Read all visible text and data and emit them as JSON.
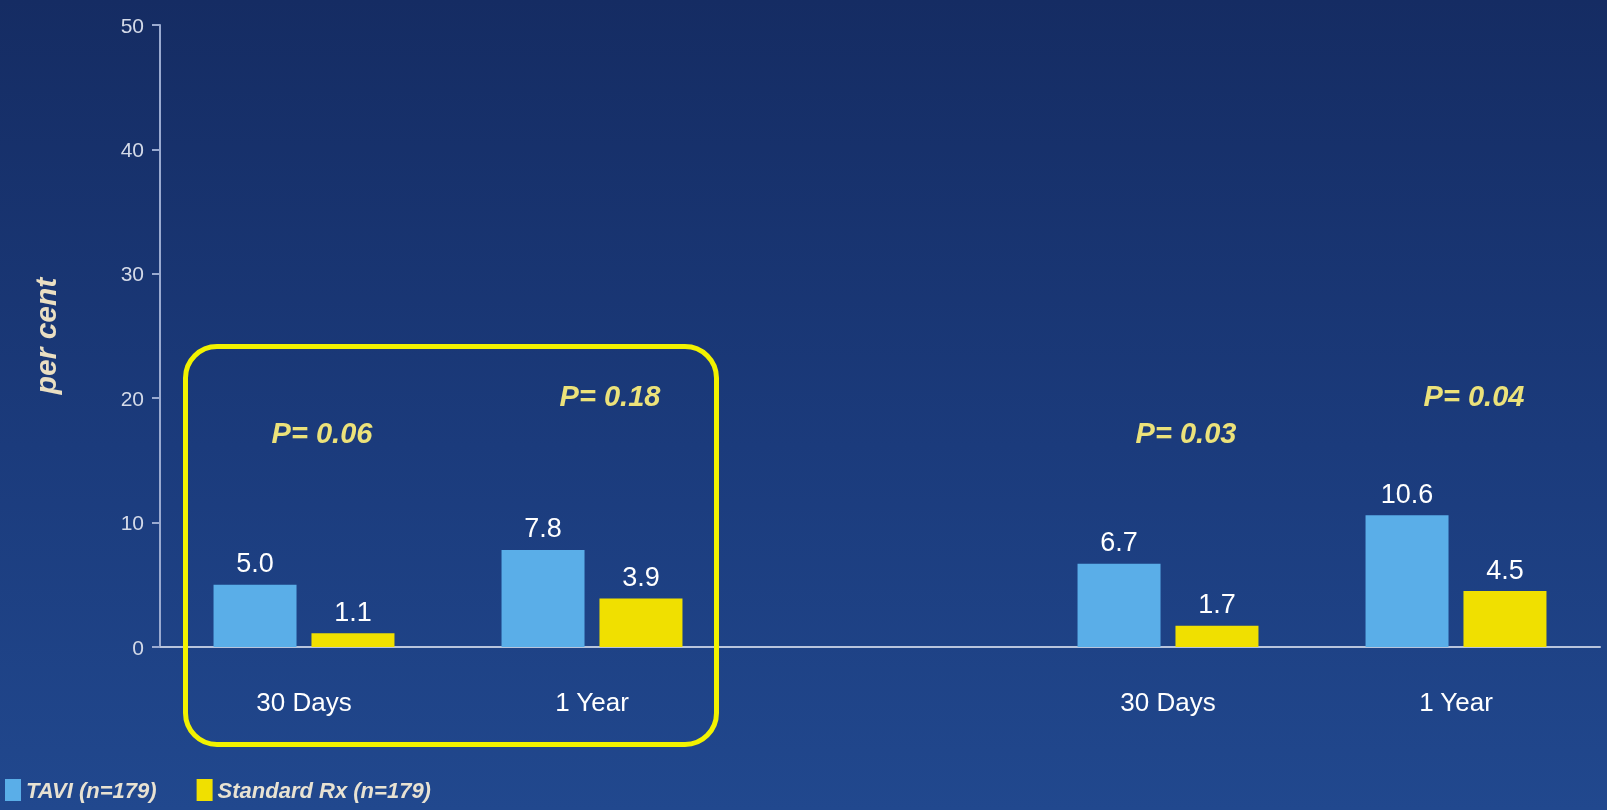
{
  "chart_data": {
    "type": "bar",
    "ylabel": "per cent",
    "categories": [
      "30 Days",
      "1 Year",
      null,
      "30 Days",
      "1 Year"
    ],
    "series": [
      {
        "name": "TAVI (n=179)",
        "color": "#5aaee8",
        "values": [
          5.0,
          7.8,
          null,
          6.7,
          10.6
        ],
        "value_labels": [
          "5.0",
          "7.8",
          null,
          "6.7",
          "10.6"
        ]
      },
      {
        "name": "Standard Rx (n=179)",
        "color": "#f0e000",
        "values": [
          1.1,
          3.9,
          null,
          1.7,
          4.5
        ],
        "value_labels": [
          "1.1",
          "3.9",
          null,
          "1.7",
          "4.5"
        ]
      }
    ],
    "ylim": [
      0,
      50
    ],
    "yticks": [
      0,
      10,
      20,
      30,
      40,
      50
    ],
    "grid": false,
    "legend": "bottom left",
    "annotations": [
      "P= 0.06",
      "P= 0.18",
      "P= 0.03",
      "P= 0.04"
    ]
  }
}
